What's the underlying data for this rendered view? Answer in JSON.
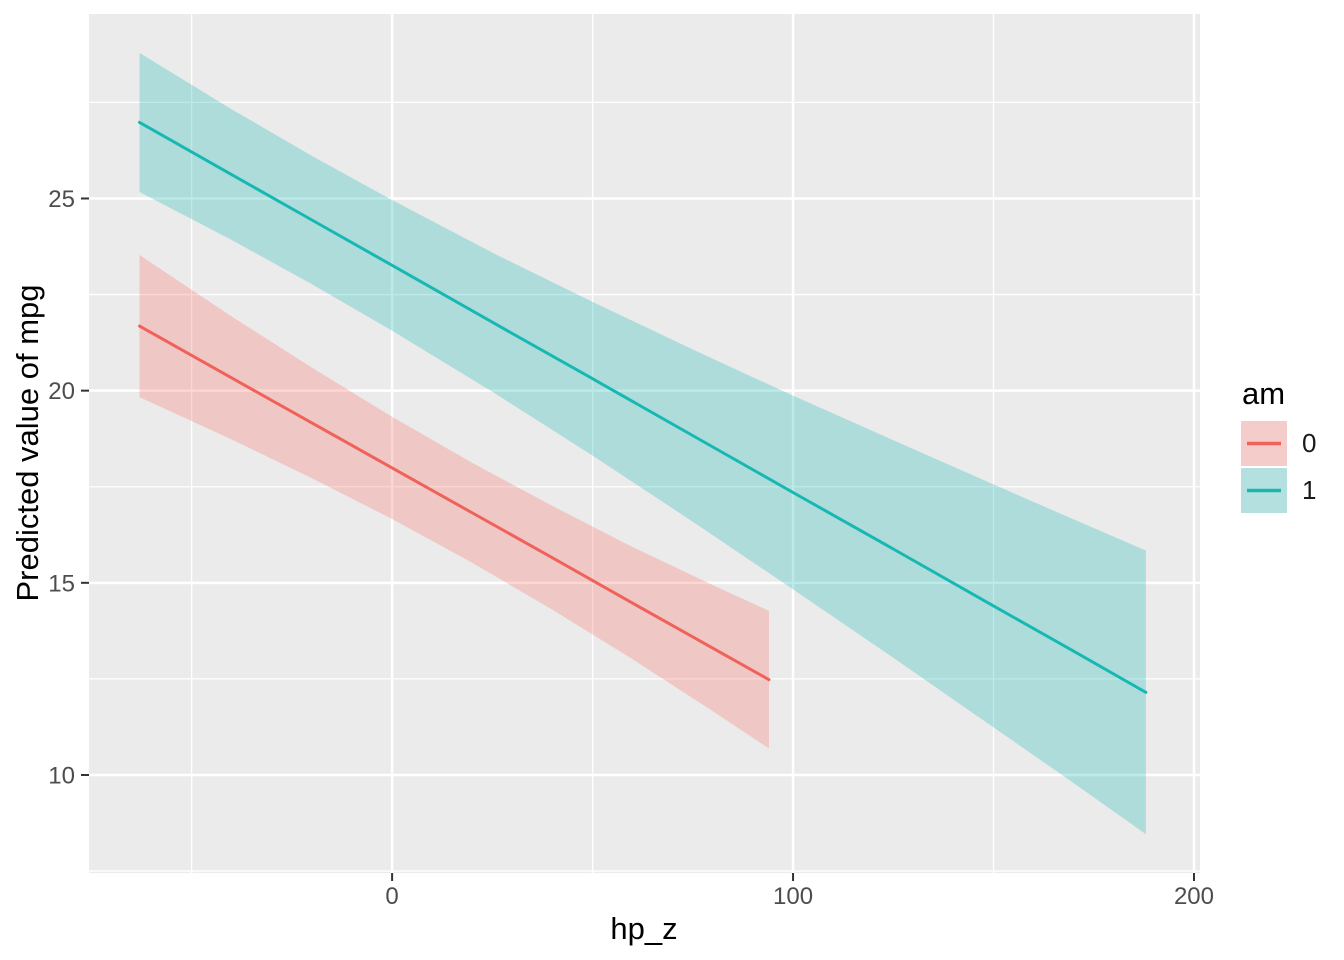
{
  "figure": {
    "background": "#FFFFFF",
    "panel_bg": "#EBEBEB",
    "grid_color": "#FFFFFF",
    "tick_mark_color": "#333333",
    "tick_label_color": "#4D4D4D",
    "axis_title_color": "#000000"
  },
  "legend": {
    "title": "am"
  },
  "chart_data": {
    "type": "line",
    "title": "",
    "xlabel": "hp_z",
    "ylabel": "Predicted value of mpg",
    "xlim": [
      -75.6,
      201.5
    ],
    "ylim": [
      7.45,
      29.8
    ],
    "grid": "on",
    "legend_position": "right",
    "x_ticks": [
      {
        "value": 0,
        "label": "0"
      },
      {
        "value": 100,
        "label": "100"
      },
      {
        "value": 200,
        "label": "200"
      }
    ],
    "x_minor_ticks": [
      -50,
      50,
      150
    ],
    "y_ticks": [
      {
        "value": 10,
        "label": "10"
      },
      {
        "value": 15,
        "label": "15"
      },
      {
        "value": 20,
        "label": "20"
      },
      {
        "value": 25,
        "label": "25"
      }
    ],
    "y_minor_ticks": [
      7.5,
      12.5,
      17.5,
      22.5,
      27.5
    ],
    "series": [
      {
        "name": "am = 0",
        "label": "0",
        "line_color": "#F0615A",
        "ribbon_fill": "rgba(248,118,109,0.30)",
        "key_fill": "#F4CDCA",
        "points": [
          {
            "x": -63,
            "y": 21.68,
            "ci_low": 19.83,
            "ci_high": 23.53
          },
          {
            "x": -40,
            "y": 20.33,
            "ci_low": 18.73,
            "ci_high": 21.93
          },
          {
            "x": -20,
            "y": 19.16,
            "ci_low": 17.72,
            "ci_high": 20.6
          },
          {
            "x": 0,
            "y": 17.99,
            "ci_low": 16.66,
            "ci_high": 19.32
          },
          {
            "x": 20,
            "y": 16.82,
            "ci_low": 15.52,
            "ci_high": 18.12
          },
          {
            "x": 40,
            "y": 15.65,
            "ci_low": 14.3,
            "ci_high": 17.0
          },
          {
            "x": 60,
            "y": 14.47,
            "ci_low": 13.01,
            "ci_high": 15.93
          },
          {
            "x": 80,
            "y": 13.3,
            "ci_low": 11.66,
            "ci_high": 14.94
          },
          {
            "x": 94,
            "y": 12.48,
            "ci_low": 10.69,
            "ci_high": 14.27
          }
        ]
      },
      {
        "name": "am = 1",
        "label": "1",
        "line_color": "#18B8B2",
        "ribbon_fill": "rgba(34,187,182,0.30)",
        "key_fill": "#B4E1E0",
        "points": [
          {
            "x": -63,
            "y": 26.98,
            "ci_low": 25.17,
            "ci_high": 28.79
          },
          {
            "x": -40,
            "y": 25.62,
            "ci_low": 23.92,
            "ci_high": 27.32
          },
          {
            "x": -20,
            "y": 24.44,
            "ci_low": 22.77,
            "ci_high": 26.11
          },
          {
            "x": 0,
            "y": 23.26,
            "ci_low": 21.56,
            "ci_high": 24.96
          },
          {
            "x": 25,
            "y": 21.78,
            "ci_low": 19.97,
            "ci_high": 23.59
          },
          {
            "x": 50,
            "y": 20.31,
            "ci_low": 18.31,
            "ci_high": 22.31
          },
          {
            "x": 75,
            "y": 18.83,
            "ci_low": 16.59,
            "ci_high": 21.07
          },
          {
            "x": 100,
            "y": 17.35,
            "ci_low": 14.83,
            "ci_high": 19.87
          },
          {
            "x": 125,
            "y": 15.88,
            "ci_low": 13.05,
            "ci_high": 18.71
          },
          {
            "x": 150,
            "y": 14.4,
            "ci_low": 11.24,
            "ci_high": 17.56
          },
          {
            "x": 170,
            "y": 13.22,
            "ci_low": 9.79,
            "ci_high": 16.65
          },
          {
            "x": 188,
            "y": 12.15,
            "ci_low": 8.46,
            "ci_high": 15.84
          }
        ]
      }
    ]
  }
}
